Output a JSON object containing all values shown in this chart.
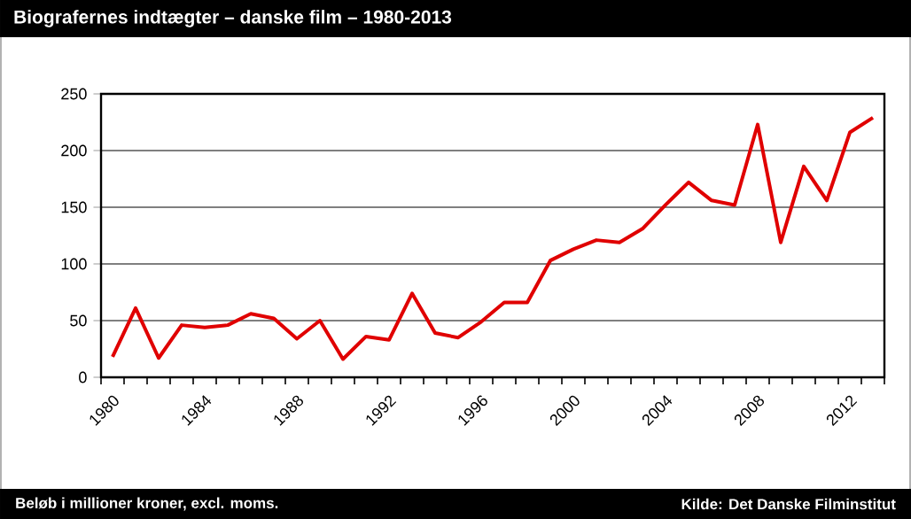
{
  "chart_data": {
    "type": "line",
    "title": "Biografernes indtægter – danske film – 1980-2013",
    "categories": [
      "1980",
      null,
      null,
      null,
      "1984",
      null,
      null,
      null,
      "1988",
      null,
      null,
      null,
      "1992",
      null,
      null,
      null,
      "1996",
      null,
      null,
      null,
      "2000",
      null,
      null,
      null,
      "2004",
      null,
      null,
      null,
      "2008",
      null,
      null,
      null,
      "2012",
      null
    ],
    "series": [
      {
        "color": "#e00000",
        "values": [
          18,
          61,
          17,
          46,
          44,
          46,
          56,
          52,
          34,
          50,
          16,
          36,
          33,
          74,
          39,
          35,
          49,
          66,
          66,
          103,
          113,
          121,
          119,
          131,
          152,
          172,
          156,
          152,
          223,
          119,
          186,
          156,
          216,
          229
        ]
      }
    ],
    "ylim": [
      0,
      250
    ],
    "yticks": [
      0,
      50,
      100,
      150,
      200,
      250
    ],
    "grid": "y",
    "marker": "none",
    "line_style": "solid",
    "annotations": [
      "Beløb i millioner kroner, excl. moms.",
      "Kilde: Det Danske Filminstitut"
    ]
  }
}
